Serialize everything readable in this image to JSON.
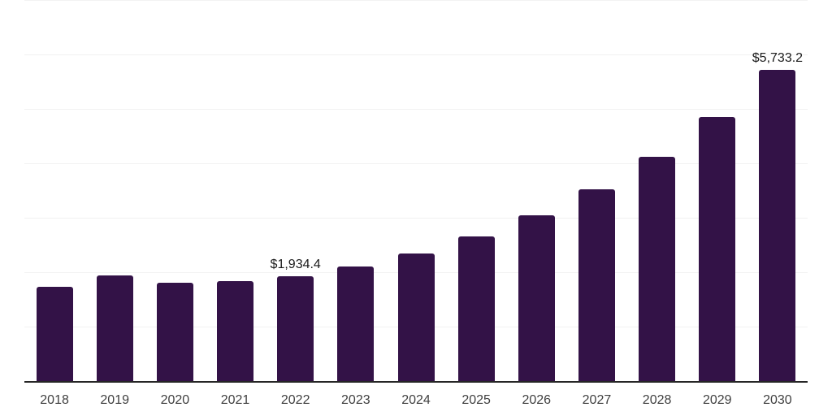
{
  "chart_data": {
    "type": "bar",
    "title": "",
    "xlabel": "",
    "ylabel": "",
    "categories": [
      "2018",
      "2019",
      "2020",
      "2021",
      "2022",
      "2023",
      "2024",
      "2025",
      "2026",
      "2027",
      "2028",
      "2029",
      "2030"
    ],
    "values": [
      1750,
      1955,
      1820,
      1850,
      1934.4,
      2125,
      2360,
      2670,
      3060,
      3540,
      4135,
      4870,
      5733.2
    ],
    "data_labels": [
      "",
      "",
      "",
      "",
      "$1,934.4",
      "",
      "",
      "",
      "",
      "",
      "",
      "",
      "$5,733.2"
    ],
    "ylim": [
      0,
      7000
    ],
    "gridline_values": [
      0,
      1000,
      2000,
      3000,
      4000,
      5000,
      6000,
      7000
    ],
    "grid": true,
    "legend_position": "none"
  },
  "colors": {
    "bar": "#331247",
    "gridline": "#f2f2f2",
    "axis_line": "#262626",
    "data_label_text": "#1a1a1a",
    "tick_label_text": "#404040",
    "background": "#ffffff"
  }
}
